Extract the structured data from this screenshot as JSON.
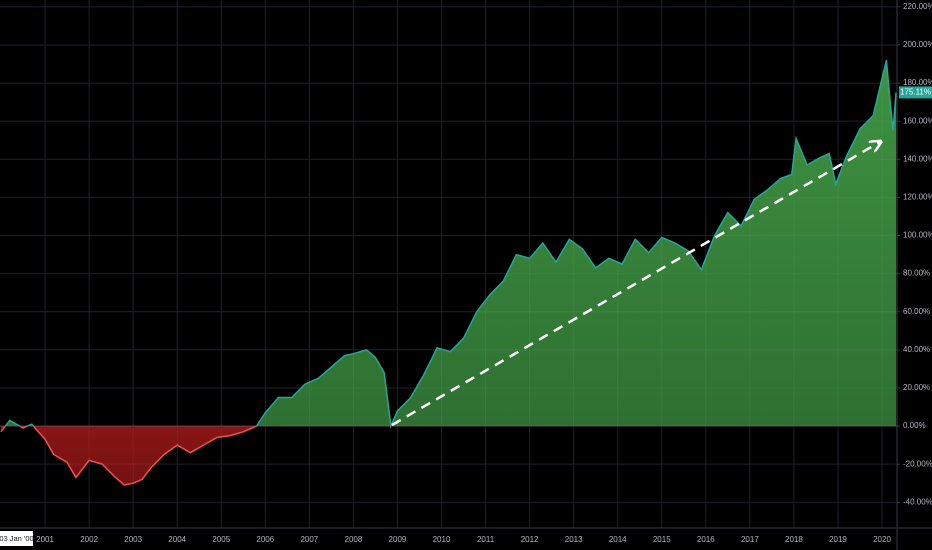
{
  "chart_data": {
    "type": "area",
    "x": [
      2000.0,
      2000.2,
      2000.5,
      2000.7,
      2001.0,
      2001.2,
      2001.5,
      2001.7,
      2002.0,
      2002.3,
      2002.6,
      2002.8,
      2003.0,
      2003.2,
      2003.4,
      2003.7,
      2004.0,
      2004.3,
      2004.6,
      2004.9,
      2005.2,
      2005.5,
      2005.8,
      2006.0,
      2006.3,
      2006.6,
      2006.9,
      2007.2,
      2007.5,
      2007.8,
      2008.0,
      2008.3,
      2008.5,
      2008.7,
      2008.85,
      2009.0,
      2009.3,
      2009.6,
      2009.9,
      2010.2,
      2010.5,
      2010.8,
      2011.1,
      2011.4,
      2011.7,
      2012.0,
      2012.3,
      2012.6,
      2012.9,
      2013.2,
      2013.5,
      2013.8,
      2014.1,
      2014.4,
      2014.7,
      2015.0,
      2015.3,
      2015.6,
      2015.9,
      2016.2,
      2016.5,
      2016.8,
      2017.1,
      2017.4,
      2017.7,
      2017.95,
      2018.05,
      2018.3,
      2018.6,
      2018.8,
      2018.95,
      2019.2,
      2019.5,
      2019.8,
      2020.1,
      2020.17,
      2020.25,
      2020.32
    ],
    "series": [
      {
        "color": "#26a69a",
        "negative_color": "#ef5350",
        "values": [
          -3,
          3,
          -1,
          1,
          -7,
          -15,
          -19,
          -27,
          -18,
          -20,
          -27,
          -31,
          -30,
          -28,
          -22,
          -15,
          -10,
          -14,
          -10,
          -6,
          -5,
          -3,
          0,
          7,
          15,
          15,
          22,
          25,
          31,
          37,
          38,
          40,
          36,
          28,
          0,
          8,
          15,
          27,
          41,
          39,
          46,
          60,
          69,
          76,
          90,
          88,
          96,
          86,
          98,
          93,
          83,
          88,
          85,
          98,
          91,
          99,
          96,
          92,
          82,
          100,
          112,
          105,
          119,
          124,
          130,
          132,
          151,
          137,
          141,
          143,
          127,
          142,
          156,
          163,
          192,
          174,
          155,
          175.11
        ]
      }
    ],
    "last_label": "175.11%",
    "x_start_label": "03 Jan '00",
    "xlim": [
      2000,
      2020.34
    ],
    "xticks": [
      2001,
      2002,
      2003,
      2004,
      2005,
      2006,
      2007,
      2008,
      2009,
      2010,
      2011,
      2012,
      2013,
      2014,
      2015,
      2016,
      2017,
      2018,
      2019,
      2020
    ],
    "ylim": [
      -53.5,
      223.6
    ],
    "yticks": [
      {
        "value": -40,
        "label": "-40.00%"
      },
      {
        "value": -20,
        "label": "-20.00%"
      },
      {
        "value": 0,
        "label": "0.00%"
      },
      {
        "value": 20,
        "label": "20.00%"
      },
      {
        "value": 40,
        "label": "40.00%"
      },
      {
        "value": 60,
        "label": "60.00%"
      },
      {
        "value": 80,
        "label": "80.00%"
      },
      {
        "value": 100,
        "label": "100.00%"
      },
      {
        "value": 120,
        "label": "120.00%"
      },
      {
        "value": 140,
        "label": "140.00%"
      },
      {
        "value": 160,
        "label": "160.00%"
      },
      {
        "value": 180,
        "label": "180.00%"
      },
      {
        "value": 200,
        "label": "200.00%"
      },
      {
        "value": 220,
        "label": "220.00%"
      }
    ],
    "grid": true
  }
}
